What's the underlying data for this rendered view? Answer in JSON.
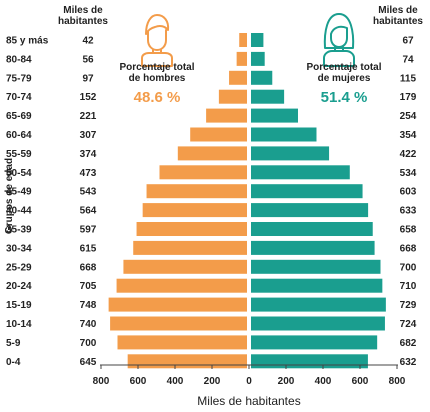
{
  "chart_data": {
    "type": "bar",
    "orientation": "horizontal-population-pyramid",
    "categories": [
      "85 y más",
      "80-84",
      "75-79",
      "70-74",
      "65-69",
      "60-64",
      "55-59",
      "50-54",
      "45-49",
      "40-44",
      "35-39",
      "30-34",
      "25-29",
      "20-24",
      "15-19",
      "10-14",
      "5-9",
      "0-4"
    ],
    "series": [
      {
        "name": "Porcentaje total de hombres",
        "side": "left",
        "values": [
          42,
          56,
          97,
          152,
          221,
          307,
          374,
          473,
          543,
          564,
          597,
          615,
          668,
          705,
          748,
          740,
          700,
          645
        ]
      },
      {
        "name": "Porcentaje total de mujeres",
        "side": "right",
        "values": [
          67,
          74,
          115,
          179,
          254,
          354,
          422,
          534,
          603,
          633,
          658,
          668,
          700,
          710,
          729,
          724,
          682,
          632
        ]
      }
    ],
    "xlabel": "Miles de habitantes",
    "ylabel": "Grupos de edad",
    "xlim": [
      -800,
      800
    ],
    "xticks": [
      -800,
      -600,
      -400,
      -200,
      0,
      200,
      400,
      600,
      800
    ],
    "xtick_labels": [
      "800",
      "600",
      "400",
      "200",
      "0",
      "200",
      "400",
      "600",
      "800"
    ],
    "left_header": "Miles de habitantes",
    "right_header": "Miles de habitantes",
    "men_label": "Porcentaje total de hombres",
    "men_percent": "48.6 %",
    "women_label": "Porcentaje total de mujeres",
    "women_percent": "51.4 %",
    "colors": {
      "men": "#f39c4a",
      "women": "#1a9e8f"
    },
    "icons": {
      "men": "man-icon",
      "women": "woman-icon"
    },
    "grid": false
  }
}
